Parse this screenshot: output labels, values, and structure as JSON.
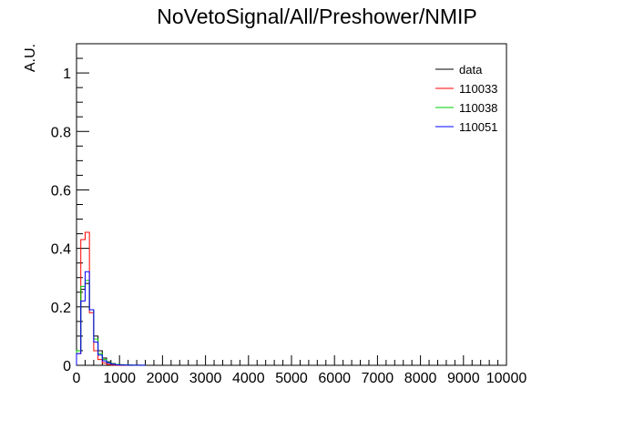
{
  "chart_data": {
    "type": "histogram",
    "title": "NoVetoSignal/All/Preshower/NMIP",
    "xlabel": "",
    "ylabel": "A.U.",
    "xlim": [
      0,
      10000
    ],
    "ylim": [
      0,
      1.1
    ],
    "xticks": [
      "0",
      "1000",
      "2000",
      "3000",
      "4000",
      "5000",
      "6000",
      "7000",
      "8000",
      "9000",
      "10000"
    ],
    "yticks": [
      "0",
      "0.2",
      "0.4",
      "0.6",
      "0.8",
      "1"
    ],
    "bin_width": 100,
    "grid": false,
    "legend_position": "top-right",
    "series": [
      {
        "name": "data",
        "color": "#000000",
        "values": [
          0.05,
          0.26,
          0.28,
          0.19,
          0.1,
          0.05,
          0.025,
          0.012,
          0.006,
          0.003,
          0.002,
          0.001,
          0.001,
          0.0005,
          0.0005,
          0.0003
        ]
      },
      {
        "name": "110033",
        "color": "#ff0000",
        "values": [
          0.04,
          0.43,
          0.455,
          0.18,
          0.05,
          0.02,
          0.008,
          0.003,
          0.001,
          0.0005,
          0.0003,
          0,
          0,
          0,
          0,
          0
        ]
      },
      {
        "name": "110038",
        "color": "#00cc00",
        "values": [
          0.05,
          0.27,
          0.29,
          0.19,
          0.09,
          0.04,
          0.02,
          0.01,
          0.005,
          0.003,
          0.002,
          0.001,
          0.001,
          0.0005,
          0.0003,
          0.0002
        ]
      },
      {
        "name": "110051",
        "color": "#0000ff",
        "values": [
          0.04,
          0.22,
          0.32,
          0.19,
          0.08,
          0.035,
          0.015,
          0.008,
          0.004,
          0.002,
          0.001,
          0.0007,
          0.0005,
          0.0003,
          0.0002,
          0.0001
        ]
      }
    ]
  }
}
